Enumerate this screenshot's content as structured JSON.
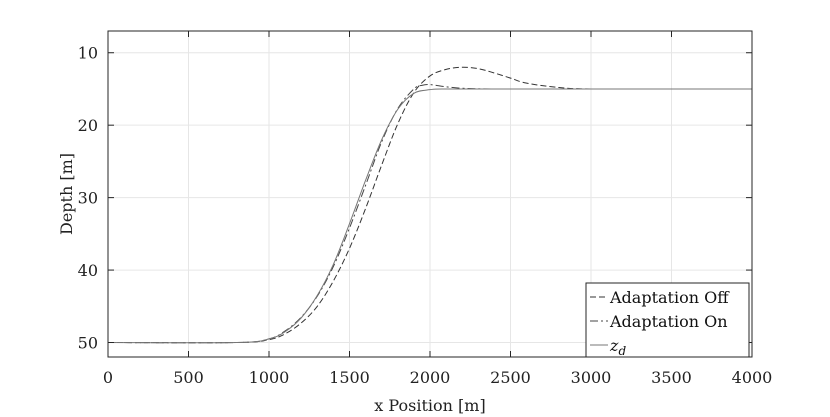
{
  "chart_data": {
    "type": "line",
    "xlabel": "x Position [m]",
    "ylabel": "Depth [m]",
    "xlim": [
      0,
      4000
    ],
    "ylim": [
      7,
      52
    ],
    "y_reversed": true,
    "grid": true,
    "x_ticks": [
      0,
      500,
      1000,
      1500,
      2000,
      2500,
      3000,
      3500,
      4000
    ],
    "y_ticks": [
      10,
      20,
      30,
      40,
      50
    ],
    "legend_position": "bottom-right",
    "series": [
      {
        "name": "Adaptation Off",
        "style": "dashed",
        "color": "#333333",
        "x": [
          0,
          800,
          1000,
          1100,
          1200,
          1300,
          1400,
          1500,
          1600,
          1700,
          1800,
          1900,
          2000,
          2100,
          2200,
          2300,
          2400,
          2500,
          2600,
          2800,
          3000,
          3500,
          4000
        ],
        "y": [
          50,
          50,
          49.6,
          48.8,
          47.3,
          45,
          41.5,
          37,
          31.5,
          25.5,
          19.8,
          15.5,
          13.2,
          12.3,
          12,
          12.2,
          12.8,
          13.5,
          14.2,
          14.8,
          15,
          15,
          15
        ]
      },
      {
        "name": "Adaptation On",
        "style": "dash-dot",
        "color": "#444444",
        "x": [
          0,
          800,
          1000,
          1100,
          1200,
          1300,
          1400,
          1500,
          1600,
          1700,
          1800,
          1900,
          1950,
          2000,
          2100,
          2200,
          2400,
          3000,
          4000
        ],
        "y": [
          50,
          50,
          49.5,
          48.4,
          46.5,
          43.6,
          39.5,
          34.2,
          28.3,
          22.3,
          17.7,
          15,
          14.5,
          14.4,
          14.7,
          14.9,
          15,
          15,
          15
        ]
      },
      {
        "name": "z_d",
        "style": "solid",
        "color": "#777777",
        "x": [
          0,
          800,
          1000,
          1100,
          1200,
          1300,
          1400,
          1500,
          1600,
          1700,
          1800,
          1900,
          2000,
          2100,
          2500,
          3000,
          4000
        ],
        "y": [
          50,
          50,
          49.5,
          48.5,
          46.6,
          43.5,
          39.2,
          33.6,
          27.6,
          22,
          17.8,
          15.6,
          15.1,
          15,
          15,
          15,
          15
        ]
      }
    ]
  }
}
